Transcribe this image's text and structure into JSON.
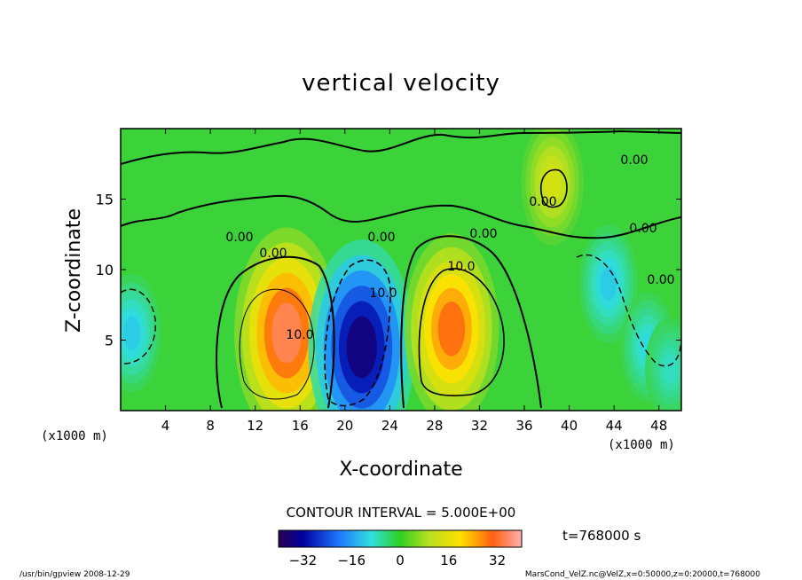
{
  "chart_data": {
    "type": "heatmap",
    "title": "vertical velocity",
    "xlabel": "X-coordinate",
    "ylabel": "Z-coordinate",
    "x_unit_left": "(x1000 m)",
    "x_unit_right": "(x1000 m)",
    "xlim": [
      0,
      50
    ],
    "ylim": [
      0,
      20
    ],
    "x_ticks": [
      "4",
      "8",
      "12",
      "16",
      "20",
      "24",
      "28",
      "32",
      "36",
      "40",
      "44",
      "48"
    ],
    "y_ticks": [
      "5",
      "10",
      "15"
    ],
    "contour_interval_text": "CONTOUR INTERVAL = 5.000E+00",
    "contour_labels": [
      "0.00",
      "0.00",
      "0.00",
      "0.00",
      "0.00",
      "0.00",
      "10.0",
      "10.0",
      "10.0",
      "0.00",
      "0.00"
    ],
    "colorbar": {
      "range": [
        -40,
        40
      ],
      "ticks": [
        "-32",
        "-16",
        "0",
        "16",
        "32"
      ]
    },
    "time_label": "t=768000 s",
    "cells": [
      {
        "x": 14.8,
        "z": 5.5,
        "w": 35
      },
      {
        "x": 21.5,
        "z": 4.5,
        "w": -36
      },
      {
        "x": 29.5,
        "z": 5.8,
        "w": 30
      },
      {
        "x": 38.5,
        "z": 16.2,
        "w": 14
      },
      {
        "x": 1.0,
        "z": 5.5,
        "w": -12
      },
      {
        "x": 43.5,
        "z": 9.0,
        "w": -12
      },
      {
        "x": 47.0,
        "z": 4.5,
        "w": -10
      },
      {
        "x": 49.0,
        "z": 3.0,
        "w": -8
      }
    ]
  },
  "footer": {
    "left": "/usr/bin/gpview   2008-12-29",
    "right": "MarsCond_VelZ.nc@VelZ,x=0:50000,z=0:20000,t=768000"
  }
}
